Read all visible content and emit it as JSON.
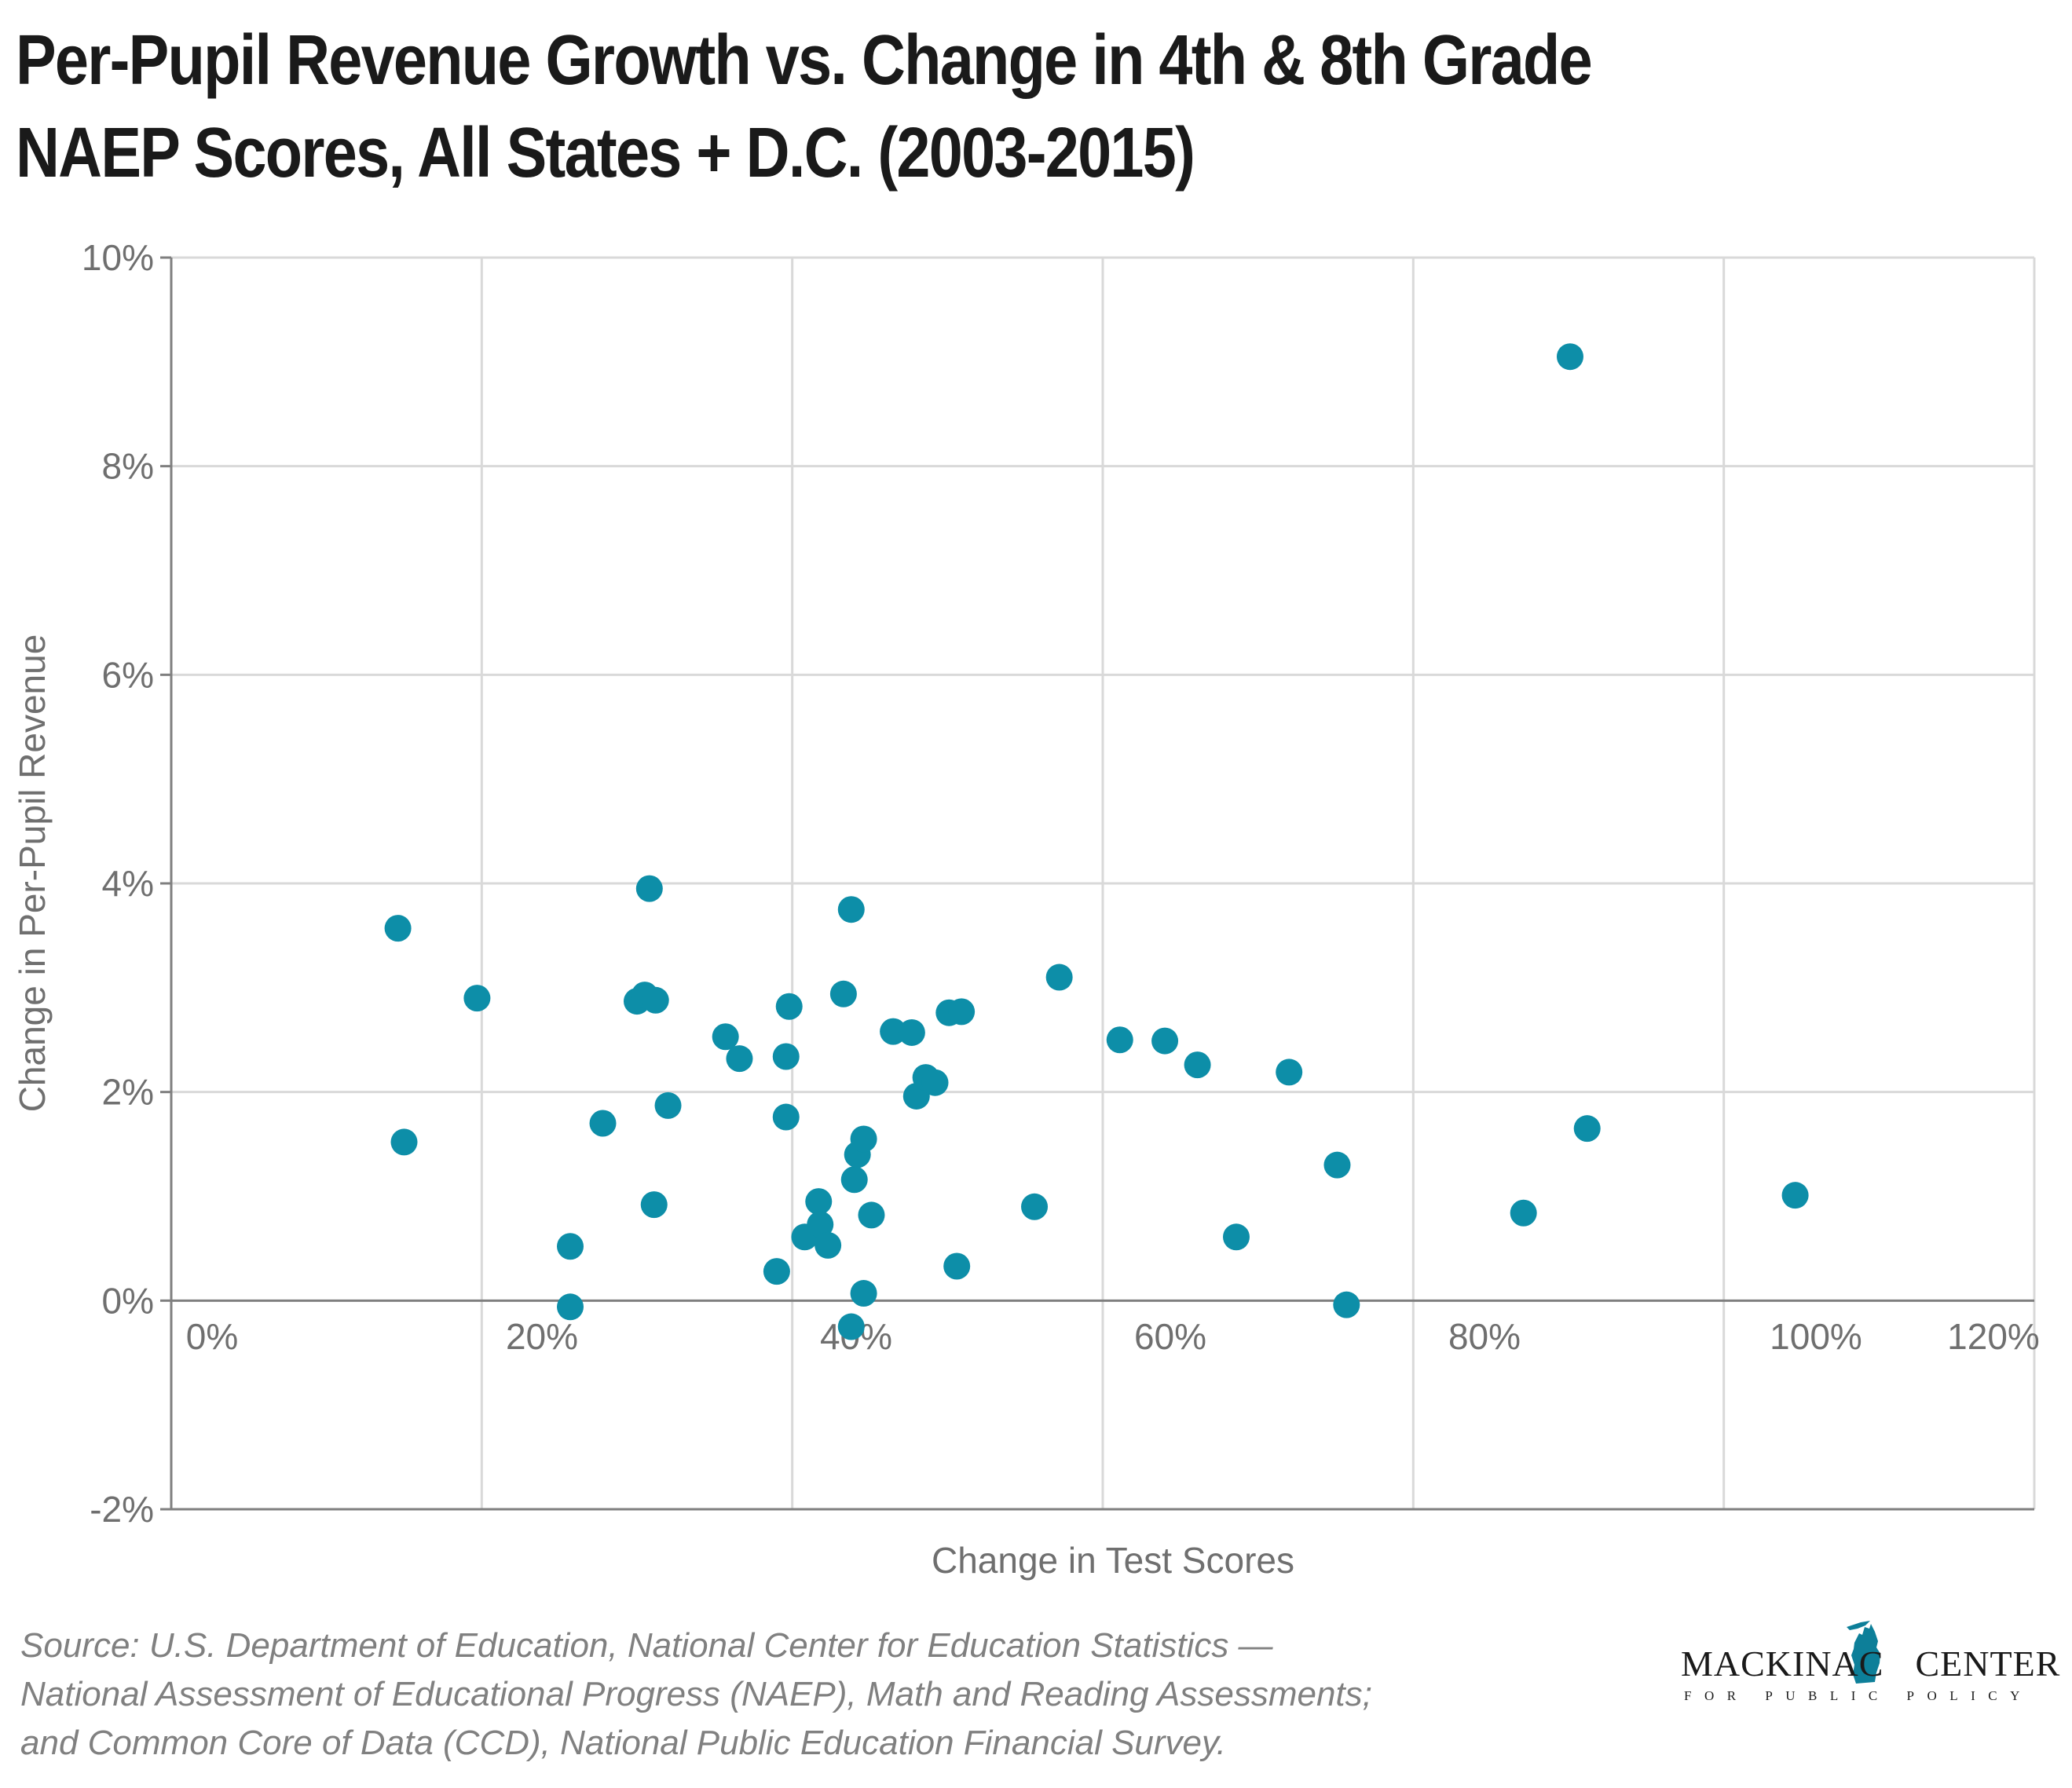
{
  "title_lines": [
    "Per-Pupil Revenue Growth vs. Change in 4th & 8th Grade",
    "NAEP Scores, All States + D.C. (2003-2015)"
  ],
  "source_lines": [
    "Source: U.S. Department of Education, National Center for Education Statistics —",
    "National Assessment of Educational Progress (NAEP), Math and Reading Assessments;",
    "and Common Core of Data (CCD), National Public Education Financial Survey."
  ],
  "logo": {
    "left_text": "MACKINAC",
    "right_text": "CENTER",
    "tagline": "FOR PUBLIC POLICY",
    "icon": "michigan-map-icon"
  },
  "colors": {
    "marker": "#0d8ea8",
    "grid": "#d9d9d9",
    "axis": "#7f7f7f",
    "tick_text": "#6f6f6f",
    "title": "#1a1a1a"
  },
  "chart_data": {
    "type": "scatter",
    "xlabel": "Change in Test Scores",
    "ylabel": "Change in Per-Pupil Revenue",
    "xlim": [
      0,
      120
    ],
    "ylim": [
      -2,
      10
    ],
    "x_ticks": [
      "0%",
      "20%",
      "40%",
      "60%",
      "80%",
      "100%",
      "120%"
    ],
    "y_ticks": [
      "10%",
      "8%",
      "6%",
      "4%",
      "2%",
      "0%",
      "-2%"
    ],
    "grid": true,
    "legend": "none",
    "points": [
      {
        "x": 14.6,
        "y": 3.57
      },
      {
        "x": 15.0,
        "y": 1.52
      },
      {
        "x": 19.7,
        "y": 2.9
      },
      {
        "x": 25.7,
        "y": 0.52
      },
      {
        "x": 25.7,
        "y": -0.06
      },
      {
        "x": 27.8,
        "y": 1.7
      },
      {
        "x": 30.0,
        "y": 2.87
      },
      {
        "x": 30.5,
        "y": 2.93
      },
      {
        "x": 30.8,
        "y": 3.95
      },
      {
        "x": 31.1,
        "y": 0.92
      },
      {
        "x": 31.2,
        "y": 2.88
      },
      {
        "x": 32.0,
        "y": 1.87
      },
      {
        "x": 35.7,
        "y": 2.53
      },
      {
        "x": 36.6,
        "y": 2.32
      },
      {
        "x": 39.0,
        "y": 0.28
      },
      {
        "x": 39.6,
        "y": 2.34
      },
      {
        "x": 39.6,
        "y": 1.76
      },
      {
        "x": 39.8,
        "y": 2.82
      },
      {
        "x": 40.8,
        "y": 0.61
      },
      {
        "x": 41.7,
        "y": 0.95
      },
      {
        "x": 41.8,
        "y": 0.73
      },
      {
        "x": 42.3,
        "y": 0.53
      },
      {
        "x": 43.3,
        "y": 2.94
      },
      {
        "x": 43.8,
        "y": 3.75
      },
      {
        "x": 43.8,
        "y": -0.25
      },
      {
        "x": 44.0,
        "y": 1.16
      },
      {
        "x": 44.2,
        "y": 1.4
      },
      {
        "x": 44.6,
        "y": 1.55
      },
      {
        "x": 44.6,
        "y": 0.07
      },
      {
        "x": 45.1,
        "y": 0.82
      },
      {
        "x": 46.5,
        "y": 2.58
      },
      {
        "x": 47.7,
        "y": 2.57
      },
      {
        "x": 48.0,
        "y": 1.96
      },
      {
        "x": 48.6,
        "y": 2.14
      },
      {
        "x": 49.2,
        "y": 2.09
      },
      {
        "x": 50.1,
        "y": 2.76
      },
      {
        "x": 50.6,
        "y": 0.33
      },
      {
        "x": 50.9,
        "y": 2.77
      },
      {
        "x": 55.6,
        "y": 0.9
      },
      {
        "x": 57.2,
        "y": 3.1
      },
      {
        "x": 61.1,
        "y": 2.5
      },
      {
        "x": 64.0,
        "y": 2.49
      },
      {
        "x": 66.1,
        "y": 2.26
      },
      {
        "x": 68.6,
        "y": 0.61
      },
      {
        "x": 72.0,
        "y": 2.19
      },
      {
        "x": 75.1,
        "y": 1.3
      },
      {
        "x": 75.7,
        "y": -0.04
      },
      {
        "x": 87.1,
        "y": 0.84
      },
      {
        "x": 90.1,
        "y": 9.05
      },
      {
        "x": 91.2,
        "y": 1.65
      },
      {
        "x": 104.6,
        "y": 1.01
      }
    ]
  }
}
